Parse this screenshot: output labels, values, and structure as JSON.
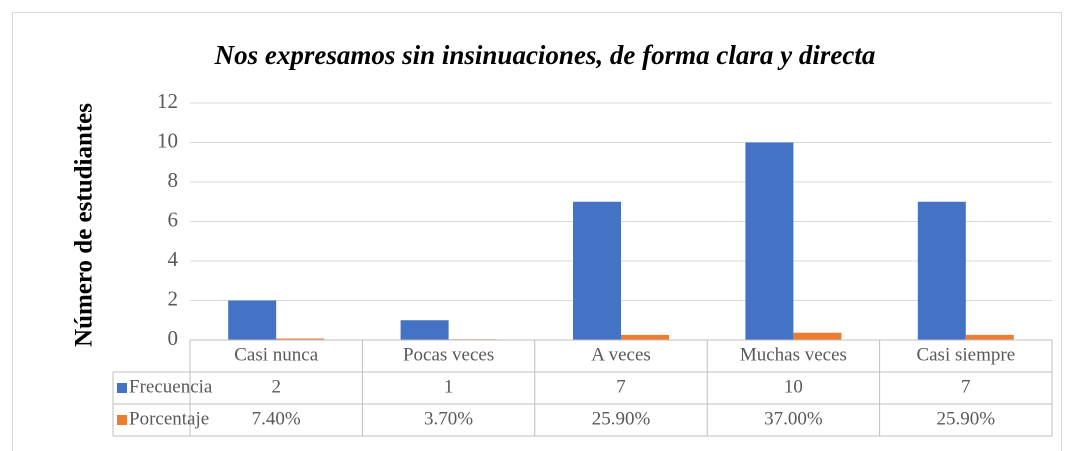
{
  "chart_data": {
    "type": "bar",
    "title": "Nos expresamos sin insinuaciones, de forma clara y directa",
    "y_label": "Número de estudiantes",
    "categories": [
      "Casi nunca",
      "Pocas veces",
      "A veces",
      "Muchas veces",
      "Casi siempre"
    ],
    "series": [
      {
        "name": "Frecuencia",
        "color": "#4472c4",
        "values": [
          2,
          1,
          7,
          10,
          7
        ]
      },
      {
        "name": "Porcentaje",
        "color": "#ed7d31",
        "values": [
          0.074,
          0.037,
          0.259,
          0.37,
          0.259
        ],
        "value_labels": [
          "7.40%",
          "3.70%",
          "25.90%",
          "37.00%",
          "25.90%"
        ]
      }
    ],
    "ylim": [
      0,
      12
    ],
    "yticks": [
      0,
      2,
      4,
      6,
      8,
      10,
      12
    ],
    "grid": true,
    "legend": "data-table"
  }
}
